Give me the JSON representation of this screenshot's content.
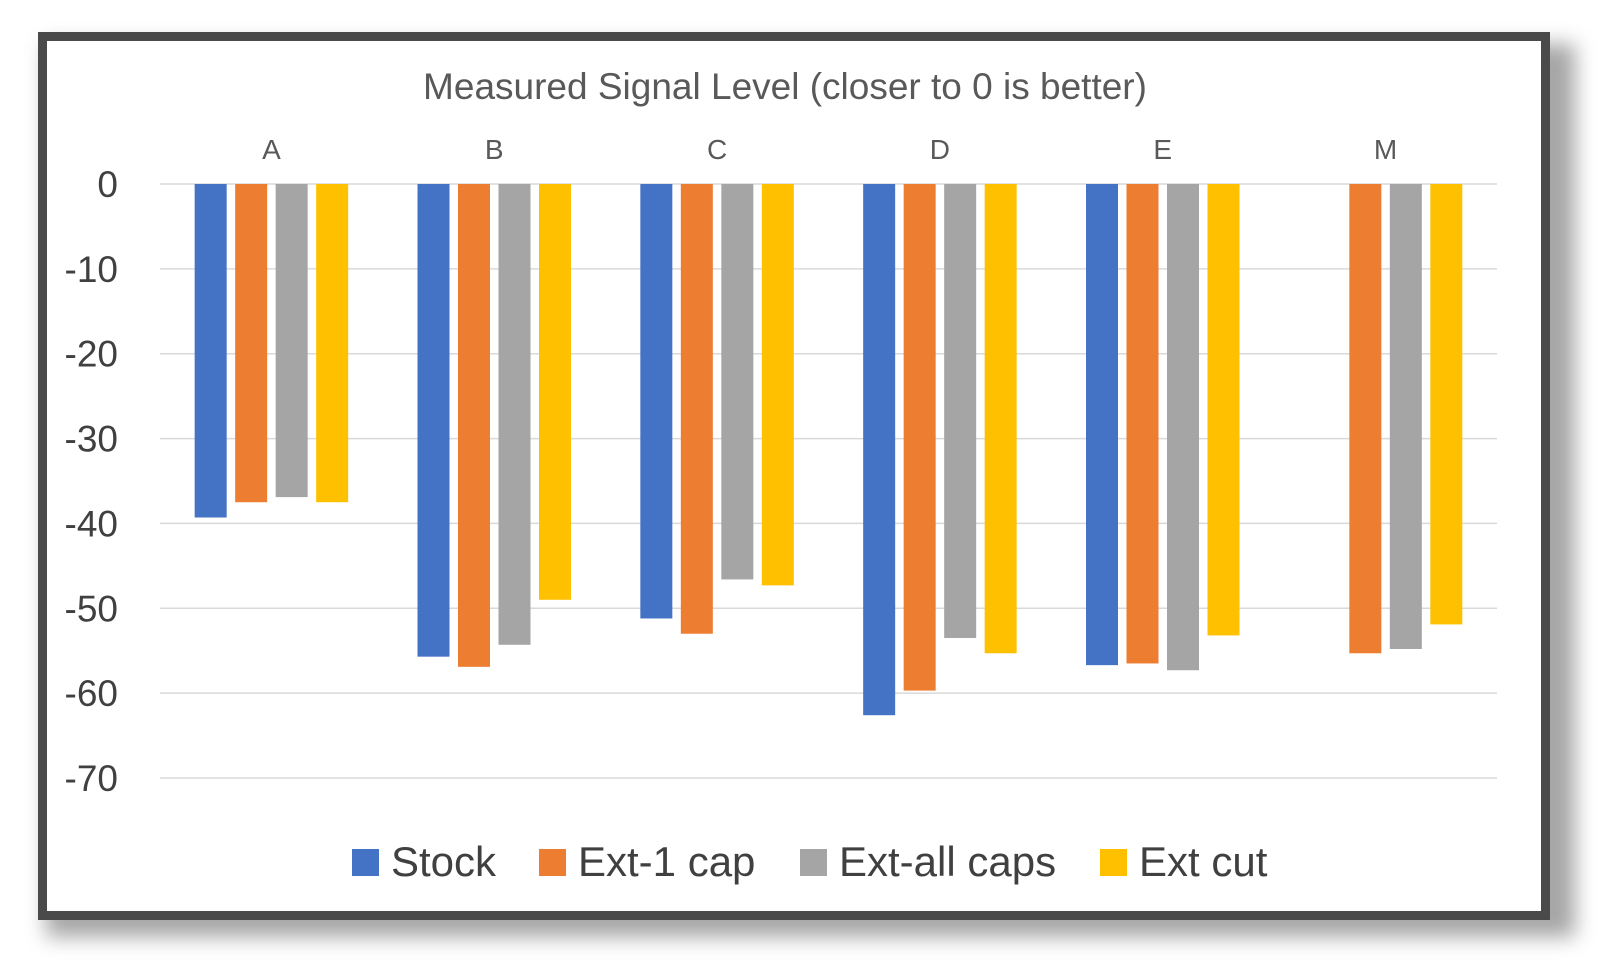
{
  "chart_data": {
    "type": "bar",
    "title": "Measured Signal Level (closer to 0 is better)",
    "categories": [
      "A",
      "B",
      "C",
      "D",
      "E",
      "M"
    ],
    "series": [
      {
        "name": "Stock",
        "color": "#4472C4",
        "values": [
          -39.3,
          -55.7,
          -51.2,
          -62.6,
          -56.7,
          null
        ]
      },
      {
        "name": "Ext-1 cap",
        "color": "#ED7D31",
        "values": [
          -37.5,
          -56.9,
          -53.0,
          -59.7,
          -56.5,
          -55.3
        ]
      },
      {
        "name": "Ext-all caps",
        "color": "#A5A5A5",
        "values": [
          -36.9,
          -54.3,
          -46.6,
          -53.5,
          -57.3,
          -54.8
        ]
      },
      {
        "name": "Ext cut",
        "color": "#FFC000",
        "values": [
          -37.5,
          -49.0,
          -47.3,
          -55.3,
          -53.2,
          -51.9
        ]
      }
    ],
    "yticks": [
      "0",
      "-10",
      "-20",
      "-30",
      "-40",
      "-50",
      "-60",
      "-70"
    ],
    "ylim": [
      -70,
      0
    ],
    "category_axis_position": "top",
    "grid": true,
    "legend": "bottom"
  }
}
